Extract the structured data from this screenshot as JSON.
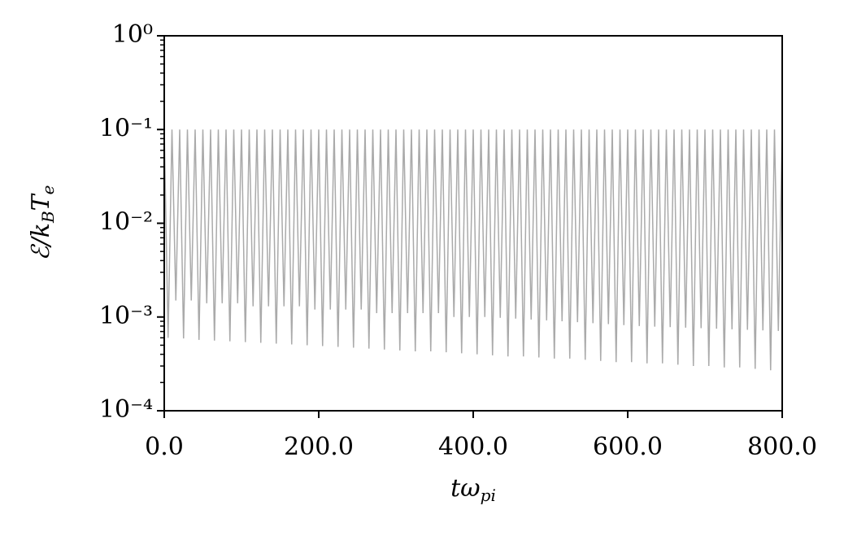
{
  "chart_data": {
    "type": "line",
    "xlabel": [
      "tω",
      "pi"
    ],
    "ylabel": [
      "ℰ/k",
      "B",
      "T",
      "e"
    ],
    "log_y": true,
    "xlim": [
      0,
      800
    ],
    "ylim": [
      0.0001,
      1
    ],
    "xticks": [
      {
        "value": 0,
        "label": "0.0"
      },
      {
        "value": 200,
        "label": "200.0"
      },
      {
        "value": 400,
        "label": "400.0"
      },
      {
        "value": 600,
        "label": "600.0"
      },
      {
        "value": 800,
        "label": "800.0"
      }
    ],
    "yticks": [
      {
        "value": 0.0001,
        "label": "10⁻⁴"
      },
      {
        "value": 0.001,
        "label": "10⁻³"
      },
      {
        "value": 0.01,
        "label": "10⁻²"
      },
      {
        "value": 0.1,
        "label": "10⁻¹"
      },
      {
        "value": 1,
        "label": "10⁰"
      }
    ],
    "x": [
      0,
      5,
      10,
      15,
      20,
      25,
      30,
      35,
      40,
      45,
      50,
      55,
      60,
      65,
      70,
      75,
      80,
      85,
      90,
      95,
      100,
      105,
      110,
      115,
      120,
      125,
      130,
      135,
      140,
      145,
      150,
      155,
      160,
      165,
      170,
      175,
      180,
      185,
      190,
      195,
      200,
      205,
      210,
      215,
      220,
      225,
      230,
      235,
      240,
      245,
      250,
      255,
      260,
      265,
      270,
      275,
      280,
      285,
      290,
      295,
      300,
      305,
      310,
      315,
      320,
      325,
      330,
      335,
      340,
      345,
      350,
      355,
      360,
      365,
      370,
      375,
      380,
      385,
      390,
      395,
      400,
      405,
      410,
      415,
      420,
      425,
      430,
      435,
      440,
      445,
      450,
      455,
      460,
      465,
      470,
      475,
      480,
      485,
      490,
      495,
      500,
      505,
      510,
      515,
      520,
      525,
      530,
      535,
      540,
      545,
      550,
      555,
      560,
      565,
      570,
      575,
      580,
      585,
      590,
      595,
      600,
      605,
      610,
      615,
      620,
      625,
      630,
      635,
      640,
      645,
      650,
      655,
      660,
      665,
      670,
      675,
      680,
      685,
      690,
      695,
      700,
      705,
      710,
      715,
      720,
      725,
      730,
      735,
      740,
      745,
      750,
      755,
      760,
      765,
      770,
      775,
      780,
      785,
      790,
      795,
      800
    ],
    "series": [
      {
        "color": "#aaaaaa",
        "values": [
          0.1,
          0.0006,
          0.1,
          0.0015,
          0.1,
          0.00059,
          0.1,
          0.0015,
          0.1,
          0.00057,
          0.1,
          0.0014,
          0.1,
          0.00056,
          0.1,
          0.0014,
          0.1,
          0.00055,
          0.1,
          0.0014,
          0.1,
          0.00054,
          0.1,
          0.0013,
          0.1,
          0.00053,
          0.1,
          0.0013,
          0.1,
          0.00052,
          0.1,
          0.0013,
          0.1,
          0.00051,
          0.1,
          0.0013,
          0.1,
          0.0005,
          0.1,
          0.0012,
          0.1,
          0.00049,
          0.1,
          0.0012,
          0.1,
          0.00048,
          0.1,
          0.0012,
          0.1,
          0.00047,
          0.1,
          0.0012,
          0.1,
          0.00046,
          0.1,
          0.0011,
          0.1,
          0.00045,
          0.1,
          0.0011,
          0.1,
          0.00044,
          0.1,
          0.0011,
          0.1,
          0.00043,
          0.1,
          0.0011,
          0.1,
          0.00043,
          0.1,
          0.0011,
          0.1,
          0.00042,
          0.1,
          0.001,
          0.1,
          0.00041,
          0.1,
          0.001,
          0.1,
          0.0004,
          0.1,
          0.001,
          0.1,
          0.00039,
          0.1,
          0.00098,
          0.1,
          0.00038,
          0.1,
          0.00096,
          0.1,
          0.00038,
          0.1,
          0.00094,
          0.1,
          0.00037,
          0.1,
          0.00092,
          0.1,
          0.00036,
          0.1,
          0.0009,
          0.1,
          0.00036,
          0.1,
          0.00088,
          0.1,
          0.00035,
          0.1,
          0.00086,
          0.1,
          0.00034,
          0.1,
          0.00084,
          0.1,
          0.00033,
          0.1,
          0.00082,
          0.1,
          0.00033,
          0.1,
          0.0008,
          0.1,
          0.00032,
          0.1,
          0.00079,
          0.1,
          0.00032,
          0.1,
          0.00078,
          0.1,
          0.00031,
          0.1,
          0.00077,
          0.1,
          0.0003,
          0.1,
          0.00076,
          0.1,
          0.0003,
          0.1,
          0.00075,
          0.1,
          0.00029,
          0.1,
          0.00074,
          0.1,
          0.00029,
          0.1,
          0.00073,
          0.1,
          0.00028,
          0.1,
          0.00072,
          0.1,
          0.00027,
          0.1,
          0.00071,
          0.1
        ]
      }
    ]
  }
}
